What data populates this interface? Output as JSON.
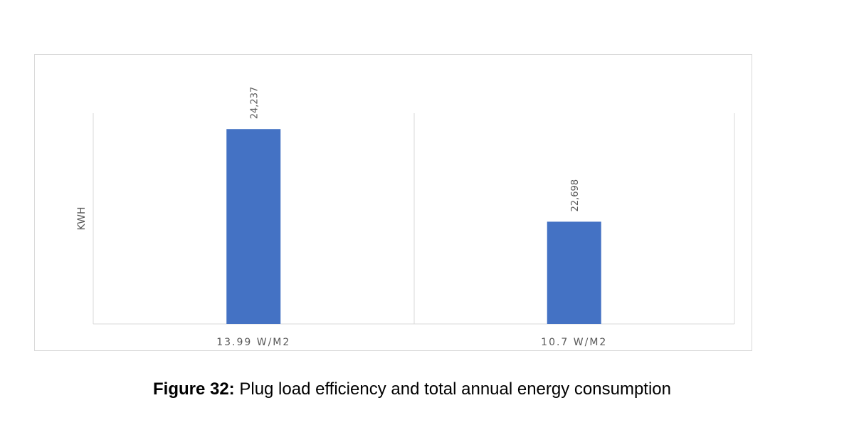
{
  "chart_data": {
    "type": "bar",
    "title": "",
    "xlabel": "",
    "ylabel": "KWH",
    "categories": [
      "13.99 W/M2",
      "10.7 W/M2"
    ],
    "values": [
      24237,
      22698
    ],
    "value_labels": [
      "24,237",
      "22,698"
    ],
    "ylim": [
      21000,
      24500
    ],
    "grid": false,
    "legend": "none",
    "bar_color": "#4472C4"
  },
  "caption": {
    "figure_number": "Figure 32:",
    "text": " Plug load efficiency and total annual energy consumption"
  }
}
